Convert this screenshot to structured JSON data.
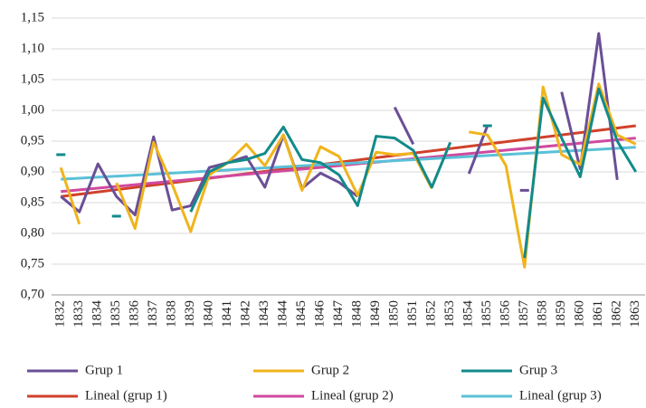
{
  "chart_data": {
    "type": "line",
    "categories": [
      "1832",
      "1833",
      "1834",
      "1835",
      "1836",
      "1837",
      "1838",
      "1839",
      "1840",
      "1841",
      "1842",
      "1843",
      "1844",
      "1845",
      "1846",
      "1847",
      "1848",
      "1849",
      "1850",
      "1851",
      "1852",
      "1853",
      "1854",
      "1855",
      "1856",
      "1857",
      "1858",
      "1859",
      "1860",
      "1861",
      "1862",
      "1863"
    ],
    "series": [
      {
        "name": "Grup 1",
        "color": "#6a4f96",
        "values": [
          0.86,
          0.835,
          0.913,
          0.86,
          0.83,
          0.957,
          0.838,
          0.845,
          0.907,
          0.915,
          0.925,
          0.875,
          0.96,
          0.873,
          0.898,
          0.883,
          0.86,
          null,
          1.005,
          0.945,
          null,
          null,
          0.897,
          0.975,
          null,
          0.87,
          null,
          1.03,
          0.905,
          1.125,
          0.887,
          null
        ]
      },
      {
        "name": "Grup 2",
        "color": "#f0b41c",
        "values": [
          0.907,
          0.815,
          null,
          0.882,
          0.808,
          0.948,
          0.88,
          0.803,
          0.895,
          0.915,
          0.945,
          0.91,
          0.96,
          0.87,
          0.941,
          0.925,
          0.862,
          0.932,
          0.928,
          0.93,
          0.873,
          null,
          0.965,
          0.96,
          0.91,
          0.745,
          1.038,
          0.928,
          0.912,
          1.043,
          0.96,
          0.945
        ]
      },
      {
        "name": "Grup 3",
        "color": "#138a8a",
        "values": [
          0.928,
          null,
          null,
          0.828,
          null,
          null,
          null,
          0.835,
          0.9,
          0.915,
          0.92,
          0.93,
          0.973,
          0.92,
          0.915,
          0.895,
          0.845,
          0.958,
          0.955,
          0.935,
          0.875,
          0.948,
          null,
          0.975,
          null,
          0.76,
          1.02,
          0.955,
          0.892,
          1.035,
          0.95,
          0.9
        ]
      }
    ],
    "trendlines": [
      {
        "name": "Lineal (grup 1)",
        "color": "#d0412b",
        "values": [
          0.86,
          0.975
        ]
      },
      {
        "name": "Lineal (grup 2)",
        "color": "#d04a9e",
        "values": [
          0.868,
          0.955
        ]
      },
      {
        "name": "Lineal (grup 3)",
        "color": "#5bc0d8",
        "values": [
          0.888,
          0.94
        ]
      }
    ],
    "ylim": [
      0.7,
      1.15
    ],
    "yticks": [
      {
        "value": 0.7,
        "label": "0,70"
      },
      {
        "value": 0.75,
        "label": "0,75"
      },
      {
        "value": 0.8,
        "label": "0,80"
      },
      {
        "value": 0.85,
        "label": "0,85"
      },
      {
        "value": 0.9,
        "label": "0,90"
      },
      {
        "value": 0.95,
        "label": "0,95"
      },
      {
        "value": 1.0,
        "label": "1,00"
      },
      {
        "value": 1.05,
        "label": "1,05"
      },
      {
        "value": 1.1,
        "label": "1,10"
      },
      {
        "value": 1.15,
        "label": "1,15"
      }
    ],
    "grid": true
  }
}
